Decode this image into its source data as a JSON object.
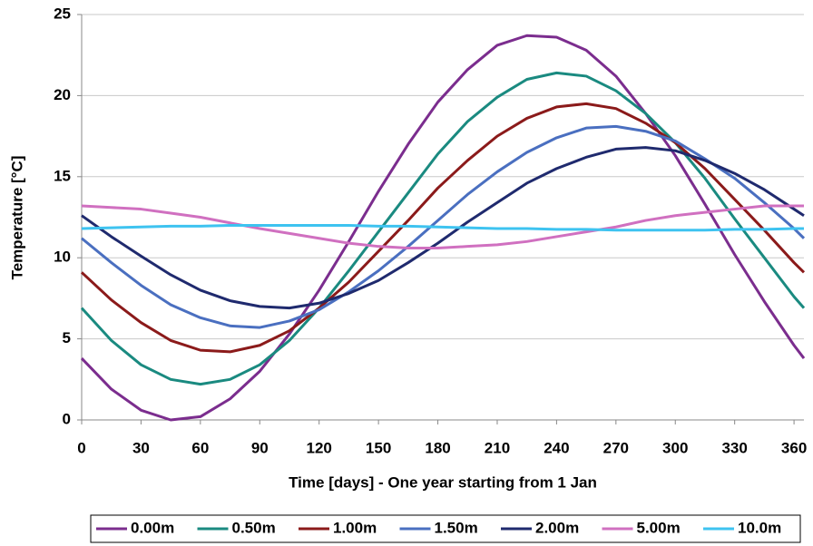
{
  "chart_data": {
    "type": "line",
    "xlabel": "Time [days] - One year starting from 1 Jan",
    "ylabel": "Temperature [°C]",
    "x": [
      0,
      15,
      30,
      45,
      60,
      75,
      90,
      105,
      120,
      135,
      150,
      165,
      180,
      195,
      210,
      225,
      240,
      255,
      270,
      285,
      300,
      315,
      330,
      345,
      360,
      365
    ],
    "xlim": [
      0,
      365
    ],
    "xticks": [
      0,
      30,
      60,
      90,
      120,
      150,
      180,
      210,
      240,
      270,
      300,
      330,
      360
    ],
    "ylim": [
      0,
      25
    ],
    "yticks": [
      0,
      5,
      10,
      15,
      20,
      25
    ],
    "grid": true,
    "legend": "bottom",
    "series": [
      {
        "name": "0.00m",
        "color": "#7b2d8e",
        "values": [
          3.8,
          1.9,
          0.6,
          0.0,
          0.2,
          1.3,
          3.0,
          5.3,
          8.0,
          11.0,
          14.1,
          17.0,
          19.6,
          21.6,
          23.1,
          23.7,
          23.6,
          22.8,
          21.2,
          18.9,
          16.3,
          13.3,
          10.2,
          7.3,
          4.6,
          3.8
        ]
      },
      {
        "name": "0.50m",
        "color": "#1a8a80",
        "values": [
          6.9,
          4.9,
          3.4,
          2.5,
          2.2,
          2.5,
          3.4,
          4.9,
          6.9,
          9.2,
          11.6,
          14.0,
          16.4,
          18.4,
          19.9,
          21.0,
          21.4,
          21.2,
          20.3,
          18.9,
          17.1,
          14.9,
          12.4,
          10.0,
          7.6,
          6.9
        ]
      },
      {
        "name": "1.00m",
        "color": "#8b1a1a",
        "values": [
          9.1,
          7.4,
          6.0,
          4.9,
          4.3,
          4.2,
          4.6,
          5.5,
          6.9,
          8.5,
          10.4,
          12.3,
          14.3,
          16.0,
          17.5,
          18.6,
          19.3,
          19.5,
          19.2,
          18.3,
          17.1,
          15.5,
          13.6,
          11.7,
          9.7,
          9.1
        ]
      },
      {
        "name": "1.50m",
        "color": "#4a6fc0",
        "values": [
          11.2,
          9.7,
          8.3,
          7.1,
          6.3,
          5.8,
          5.7,
          6.1,
          6.8,
          7.9,
          9.2,
          10.7,
          12.3,
          13.9,
          15.3,
          16.5,
          17.4,
          18.0,
          18.1,
          17.8,
          17.2,
          16.1,
          14.9,
          13.4,
          11.8,
          11.2
        ]
      },
      {
        "name": "2.00m",
        "color": "#1f2a6e",
        "values": [
          12.6,
          11.3,
          10.1,
          8.95,
          8.0,
          7.35,
          7.0,
          6.9,
          7.2,
          7.8,
          8.6,
          9.7,
          10.9,
          12.2,
          13.4,
          14.6,
          15.5,
          16.2,
          16.7,
          16.8,
          16.6,
          16.0,
          15.2,
          14.2,
          13.0,
          12.6
        ]
      },
      {
        "name": "5.00m",
        "color": "#d070c0",
        "values": [
          13.2,
          13.1,
          13.0,
          12.75,
          12.5,
          12.15,
          11.8,
          11.5,
          11.2,
          10.9,
          10.7,
          10.6,
          10.6,
          10.7,
          10.8,
          11.0,
          11.3,
          11.6,
          11.9,
          12.3,
          12.6,
          12.8,
          13.0,
          13.2,
          13.2,
          13.2
        ]
      },
      {
        "name": "10.0m",
        "color": "#3ec3f0",
        "values": [
          11.8,
          11.85,
          11.9,
          11.95,
          11.95,
          12.0,
          12.0,
          12.0,
          12.0,
          12.0,
          11.95,
          11.95,
          11.9,
          11.85,
          11.8,
          11.8,
          11.75,
          11.75,
          11.7,
          11.7,
          11.7,
          11.7,
          11.75,
          11.75,
          11.8,
          11.8
        ]
      }
    ]
  }
}
